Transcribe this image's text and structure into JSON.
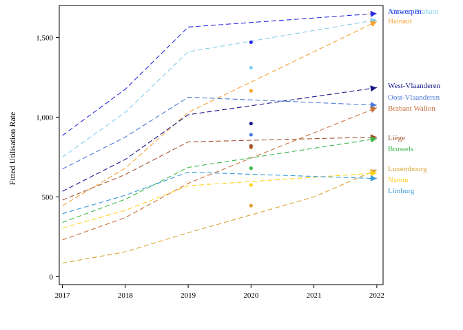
{
  "chart_data": {
    "type": "line",
    "title": "",
    "xlabel": "",
    "ylabel": "Fitted Utilisation Rate",
    "xlim": [
      2016.95,
      2022.1
    ],
    "ylim": [
      -50,
      1700
    ],
    "x_ticks": [
      "2017",
      "2018",
      "2019",
      "2020",
      "2021",
      "2022"
    ],
    "y_ticks": [
      0,
      500,
      1000,
      1500
    ],
    "y_tick_labels": [
      "0",
      "500",
      "1,000",
      "1,500"
    ],
    "grid": false,
    "legend": "direct labels at right of line ends",
    "series": [
      {
        "name": "Antwerpen",
        "color": "#2b2be0",
        "x": [
          2017,
          2018,
          2019,
          2022
        ],
        "values": [
          885,
          1175,
          1565,
          1650
        ],
        "point_2020": 1470
      },
      {
        "name": "Vlaams-Brabant",
        "color": "#87cdee",
        "x": [
          2017,
          2018,
          2019,
          2022
        ],
        "values": [
          750,
          1030,
          1410,
          1610
        ],
        "point_2020": 1310
      },
      {
        "name": "Hainaut",
        "color": "#f5a030",
        "x": [
          2017,
          2018,
          2019,
          2022
        ],
        "values": [
          445,
          680,
          1030,
          1600
        ],
        "point_2020": 1165
      },
      {
        "name": "West-Vlaanderen",
        "color": "#16168a",
        "x": [
          2017,
          2018,
          2019,
          2022
        ],
        "values": [
          535,
          735,
          1015,
          1185
        ],
        "point_2020": 960
      },
      {
        "name": "Oost-Vlaanderen",
        "color": "#4a78d6",
        "x": [
          2017,
          2018,
          2019,
          2022
        ],
        "values": [
          675,
          875,
          1125,
          1075
        ],
        "point_2020": 890
      },
      {
        "name": "Brabant Wallon",
        "color": "#c8703a",
        "x": [
          2017,
          2018,
          2019,
          2022
        ],
        "values": [
          230,
          370,
          585,
          1060
        ],
        "point_2020": 810
      },
      {
        "name": "Liège",
        "color": "#a0522d",
        "x": [
          2017,
          2018,
          2019,
          2022
        ],
        "values": [
          480,
          640,
          845,
          875
        ],
        "point_2020": 820
      },
      {
        "name": "Brussels",
        "color": "#3cb84a",
        "x": [
          2017,
          2018,
          2019,
          2022
        ],
        "values": [
          340,
          485,
          685,
          865
        ],
        "point_2020": 680
      },
      {
        "name": "Luxembourg",
        "color": "#daa230",
        "x": [
          2017,
          2018,
          2019,
          2021,
          2022
        ],
        "values": [
          85,
          155,
          275,
          500,
          670
        ],
        "point_2020": 445
      },
      {
        "name": "Namur",
        "color": "#ffd21a",
        "x": [
          2017,
          2018,
          2019,
          2022
        ],
        "values": [
          305,
          415,
          570,
          650
        ],
        "point_2020": 575
      },
      {
        "name": "Limburg",
        "color": "#3a9ad9",
        "x": [
          2017,
          2018,
          2019,
          2022
        ],
        "values": [
          395,
          510,
          655,
          615
        ],
        "point_2020": null
      }
    ]
  }
}
